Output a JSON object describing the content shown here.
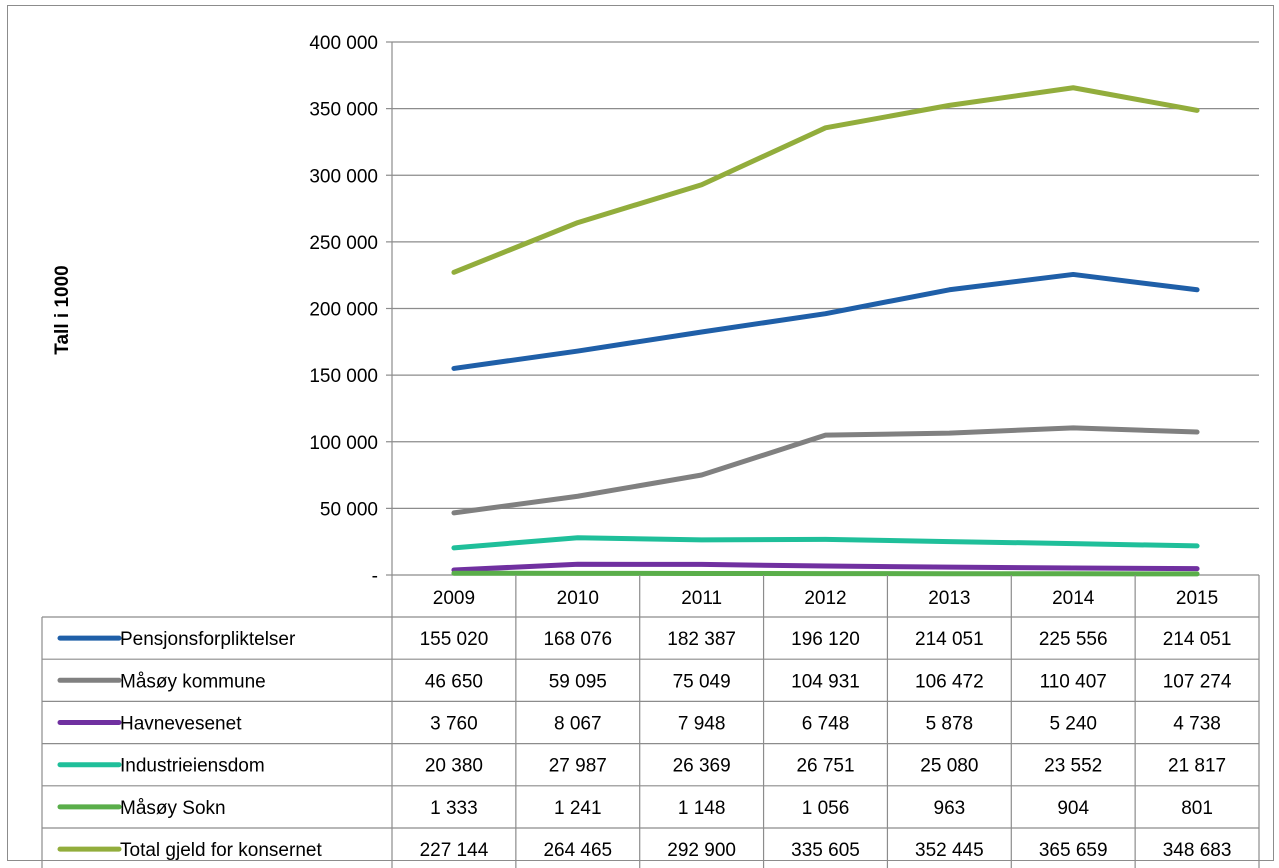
{
  "chart_data": {
    "type": "line",
    "ylabel": "Tall i 1000",
    "ylim": [
      0,
      400000
    ],
    "y_ticks": [
      "400 000",
      "350 000",
      "300 000",
      "250 000",
      "200 000",
      "150 000",
      "100 000",
      "50 000",
      "-"
    ],
    "categories": [
      "2009",
      "2010",
      "2011",
      "2012",
      "2013",
      "2014",
      "2015"
    ],
    "grid": "horizontal",
    "legend": "data-table-below",
    "series": [
      {
        "name": "Pensjonsforpliktelser",
        "color": "#1f5fa8",
        "values": [
          155020,
          168076,
          182387,
          196120,
          214051,
          225556,
          214051
        ],
        "labels": [
          "155 020",
          "168 076",
          "182 387",
          "196 120",
          "214 051",
          "225 556",
          "214 051"
        ]
      },
      {
        "name": "Måsøy kommune",
        "color": "#808080",
        "values": [
          46650,
          59095,
          75049,
          104931,
          106472,
          110407,
          107274
        ],
        "labels": [
          "46 650",
          "59 095",
          "75 049",
          "104 931",
          "106 472",
          "110 407",
          "107 274"
        ]
      },
      {
        "name": "Havnevesenet",
        "color": "#7030a0",
        "values": [
          3760,
          8067,
          7948,
          6748,
          5878,
          5240,
          4738
        ],
        "labels": [
          "3 760",
          "8 067",
          "7 948",
          "6 748",
          "5 878",
          "5 240",
          "4 738"
        ]
      },
      {
        "name": "Industrieiensdom",
        "color": "#1fbf9a",
        "values": [
          20380,
          27987,
          26369,
          26751,
          25080,
          23552,
          21817
        ],
        "labels": [
          "20 380",
          "27 987",
          "26 369",
          "26 751",
          "25 080",
          "23 552",
          "21 817"
        ]
      },
      {
        "name": "Måsøy Sokn",
        "color": "#5aae4a",
        "values": [
          1333,
          1241,
          1148,
          1056,
          963,
          904,
          801
        ],
        "labels": [
          "1 333",
          "1 241",
          "1 148",
          "1 056",
          "963",
          "904",
          "801"
        ]
      },
      {
        "name": "Total gjeld for konsernet",
        "color": "#92ad3c",
        "values": [
          227144,
          264465,
          292900,
          335605,
          352445,
          365659,
          348683
        ],
        "labels": [
          "227 144",
          "264 465",
          "292 900",
          "335 605",
          "352 445",
          "365 659",
          "348 683"
        ]
      }
    ]
  }
}
